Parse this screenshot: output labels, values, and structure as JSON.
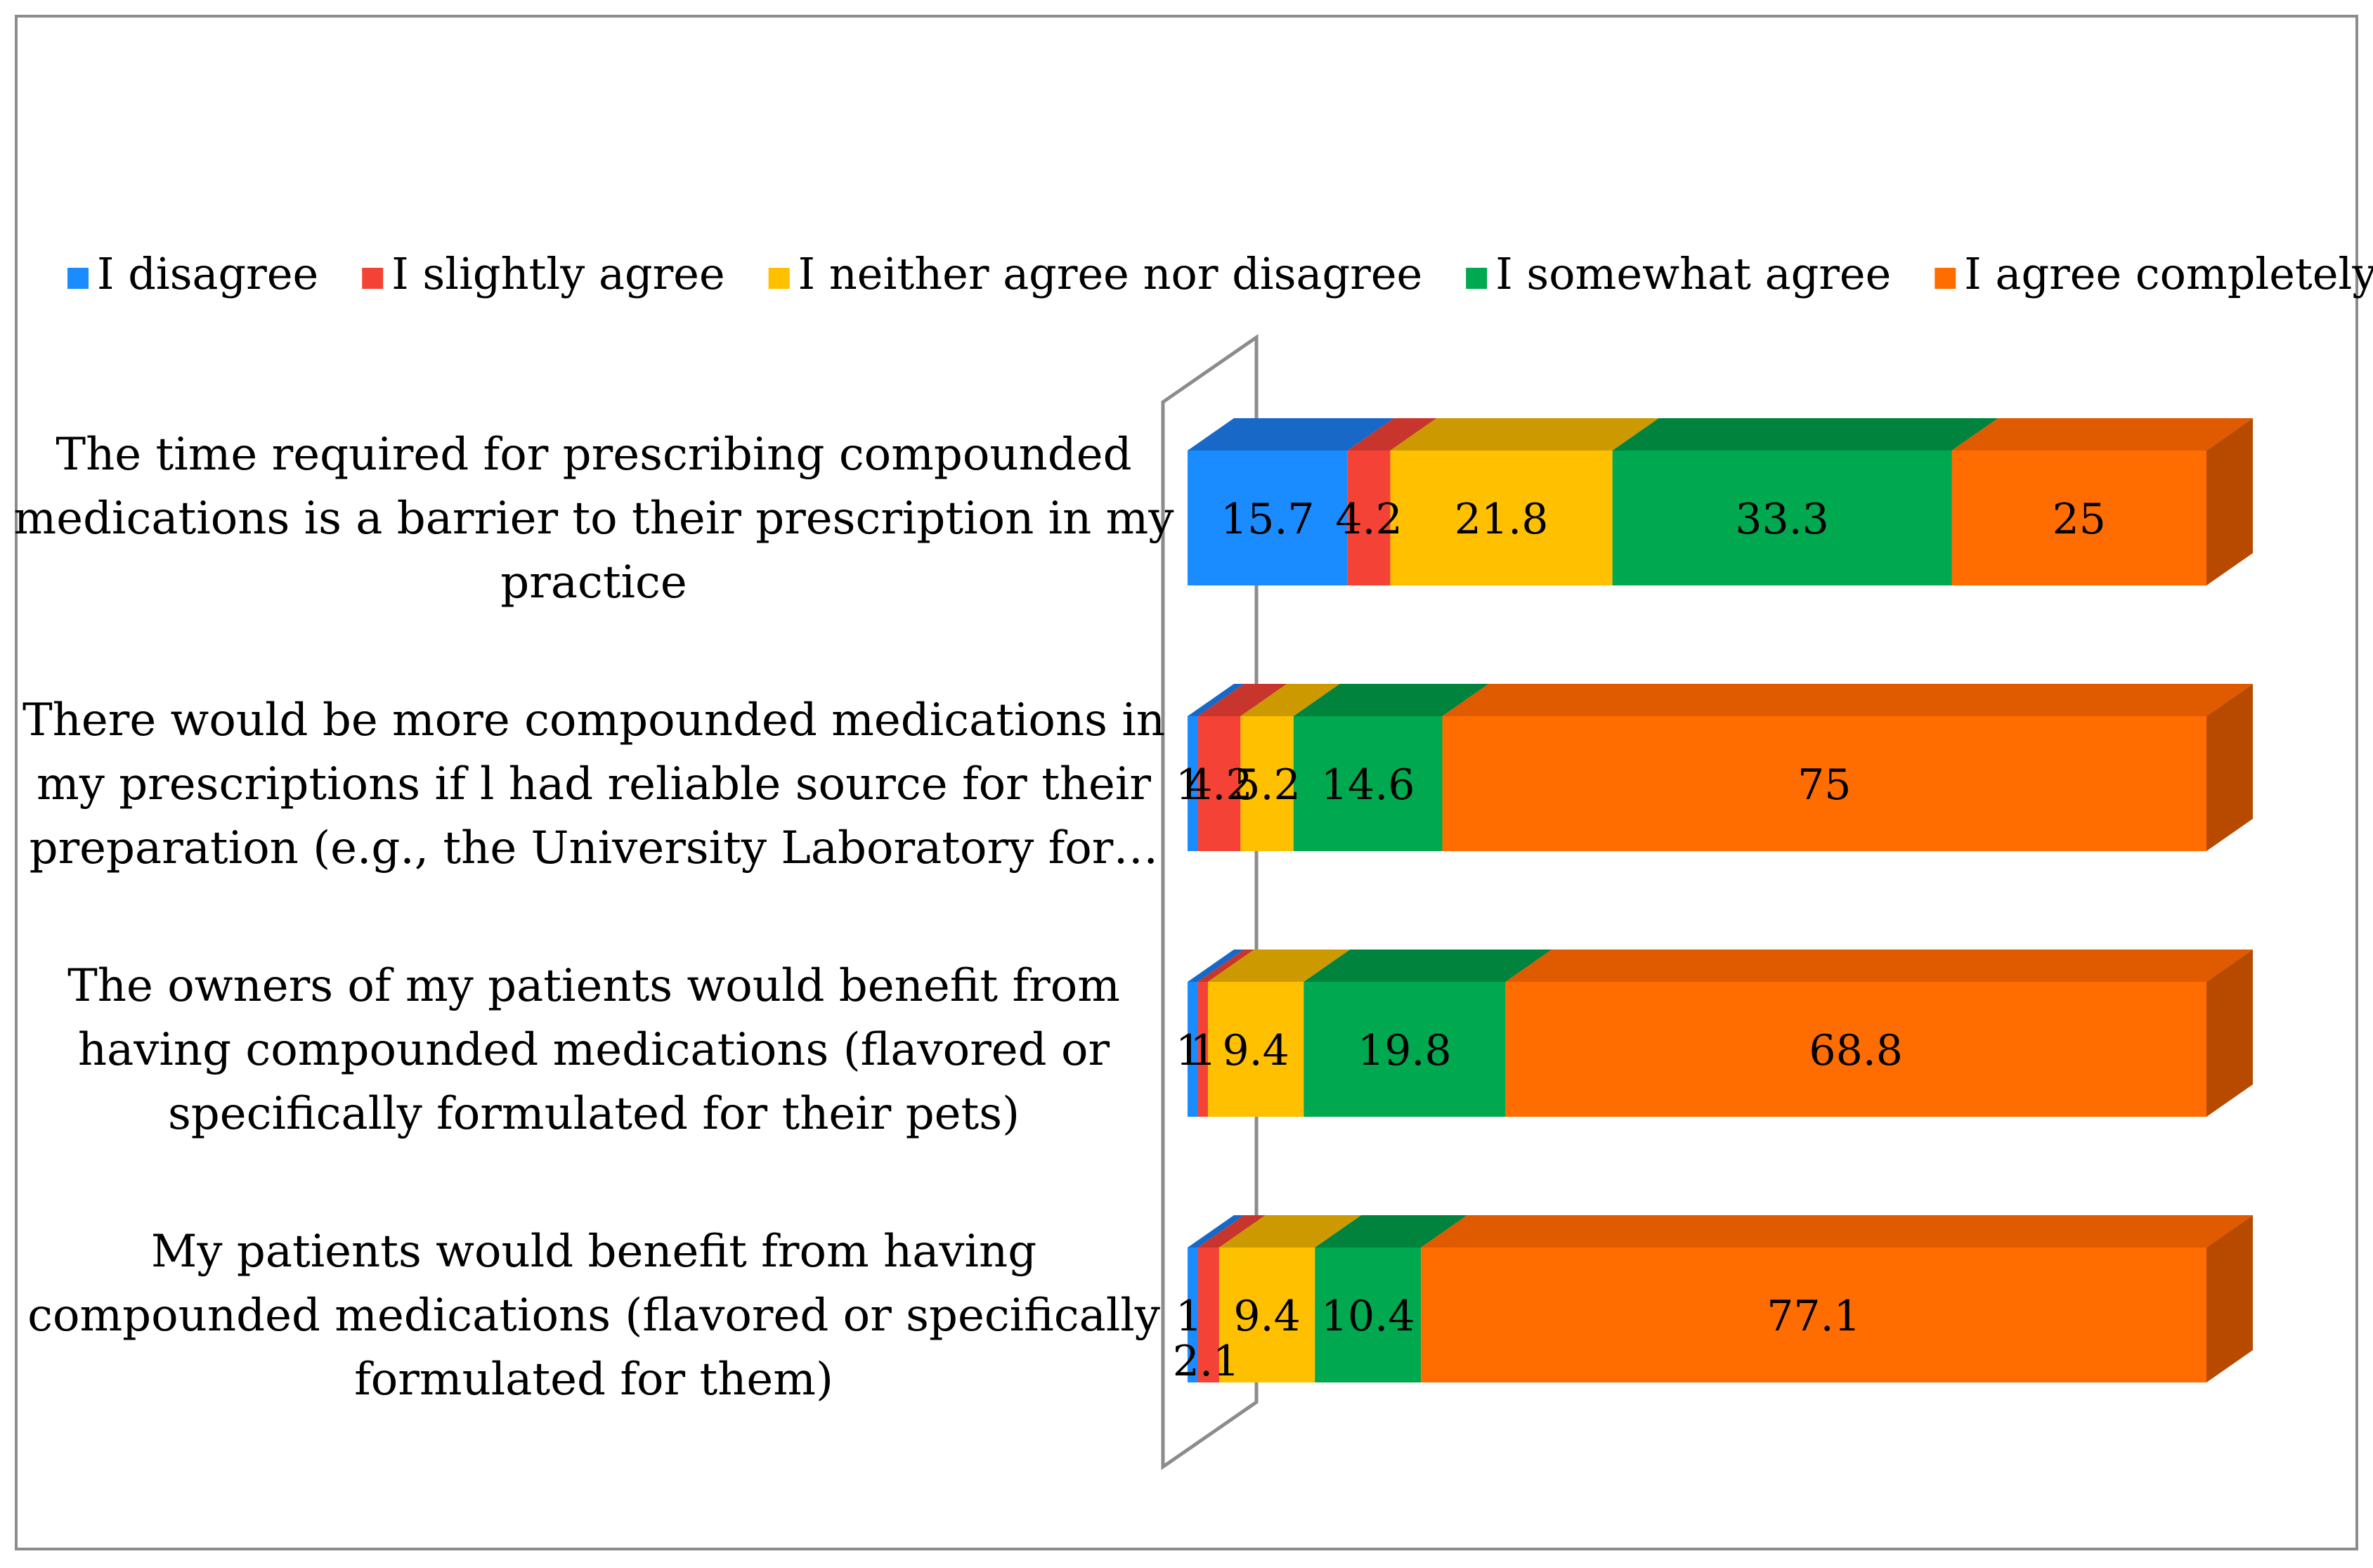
{
  "chart_data": {
    "type": "bar",
    "orientation": "horizontal",
    "stacked": true,
    "style": "3d",
    "title": "",
    "xlabel": "",
    "ylabel": "",
    "xlim": [
      0,
      100
    ],
    "grid": false,
    "legend_position": "top",
    "categories": [
      [
        "The time required for prescribing compounded",
        "medications is a barrier to their prescription in my",
        "practice"
      ],
      [
        "There would be more compounded medications in",
        "my prescriptions if l had reliable source for their",
        "preparation (e.g., the University Laboratory for…"
      ],
      [
        "The owners of my patients would benefit from",
        "having compounded medications (flavored or",
        "specifically formulated for their pets)"
      ],
      [
        "My patients would benefit from having",
        "compounded medications (flavored or specifically",
        "formulated for them)"
      ]
    ],
    "series": [
      {
        "name": "I disagree",
        "color": "#1a8cff",
        "top_color": "#1868c8",
        "values": [
          15.7,
          1,
          1,
          1
        ],
        "labels": [
          "15.7",
          "1",
          "1",
          "1"
        ]
      },
      {
        "name": "I slightly agree",
        "color": "#f44336",
        "top_color": "#c8352c",
        "values": [
          4.2,
          4.2,
          1,
          2.1
        ],
        "labels": [
          "4.2",
          "4.2",
          "1",
          "2.1"
        ]
      },
      {
        "name": "I neither agree nor disagree",
        "color": "#ffc000",
        "top_color": "#cc9a00",
        "values": [
          21.8,
          5.2,
          9.4,
          9.4
        ],
        "labels": [
          "21.8",
          "5.2",
          "9.4",
          "9.4"
        ]
      },
      {
        "name": "I somewhat agree",
        "color": "#00a84f",
        "top_color": "#00833d",
        "values": [
          33.3,
          14.6,
          19.8,
          10.4
        ],
        "labels": [
          "33.3",
          "14.6",
          "19.8",
          "10.4"
        ]
      },
      {
        "name": "I agree completely",
        "color": "#ff6d00",
        "top_color": "#e05a00",
        "side_color": "#b84a00",
        "values": [
          25,
          75,
          68.8,
          77.1
        ],
        "labels": [
          "25",
          "75",
          "68.8",
          "77.1"
        ]
      }
    ]
  }
}
